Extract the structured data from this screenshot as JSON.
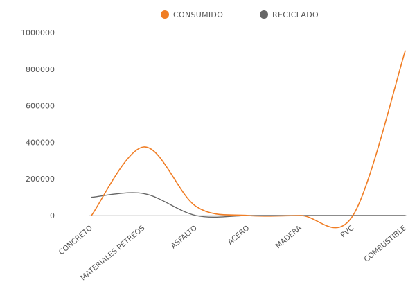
{
  "chart_data": {
    "type": "line",
    "categories": [
      "CONCRETO",
      "MATERIALES PETREOS",
      "ASFALTO",
      "ACERO",
      "MADERA",
      "PVC",
      "COMBUSTIBLE"
    ],
    "series": [
      {
        "name": "CONSUMIDO",
        "color": "#f07d24",
        "values": [
          0,
          375000,
          50000,
          0,
          0,
          0,
          900000
        ]
      },
      {
        "name": "RECICLADO",
        "color": "#666666",
        "values": [
          100000,
          120000,
          0,
          0,
          0,
          0,
          0
        ]
      }
    ],
    "ylim": [
      0,
      1000000
    ],
    "yticks": [
      "0",
      "200000",
      "400000",
      "600000",
      "800000",
      "1000000"
    ],
    "ytick_values": [
      0,
      200000,
      400000,
      600000,
      800000,
      1000000
    ],
    "legend_position": "top-center",
    "grid": false,
    "smooth": true
  }
}
